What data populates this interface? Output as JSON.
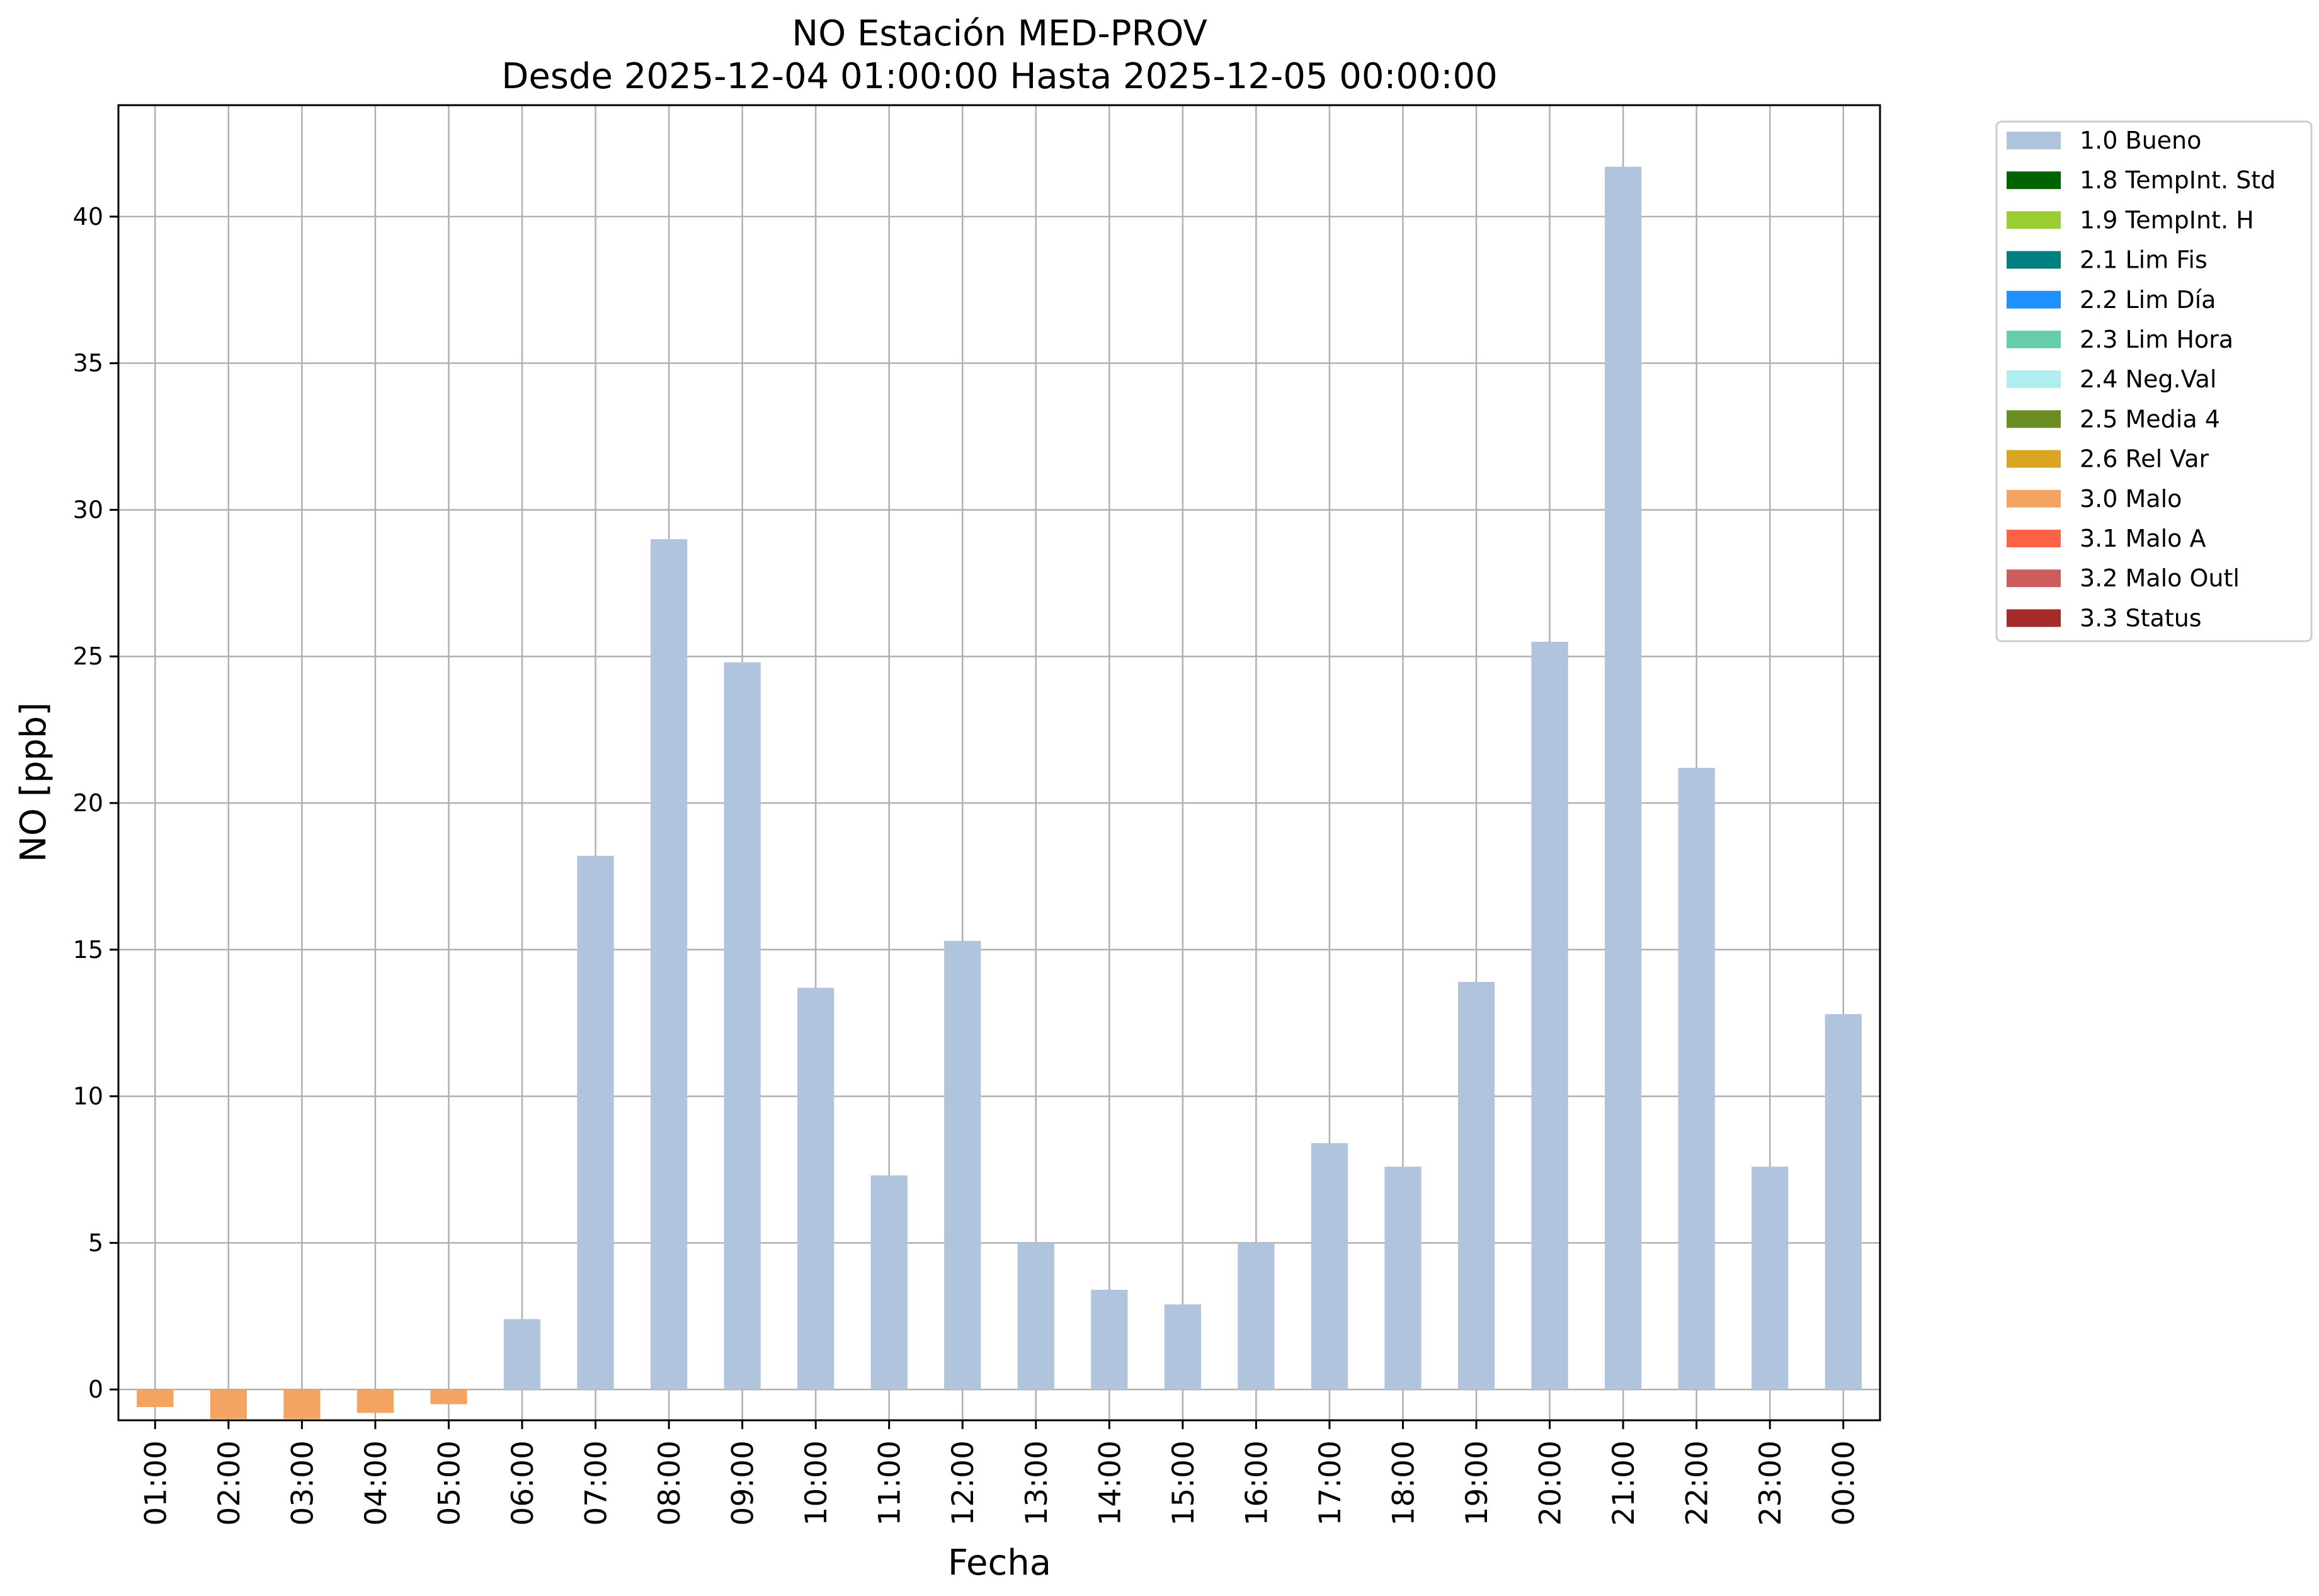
{
  "chart_data": {
    "type": "bar",
    "title": "NO Estación MED-PROV",
    "subtitle": "Desde 2025-12-04 01:00:00 Hasta 2025-12-05 00:00:00",
    "xlabel": "Fecha",
    "ylabel": "NO [ppb]",
    "ylim": [
      -1.05,
      43.8
    ],
    "yticks": [
      0,
      5,
      10,
      15,
      20,
      25,
      30,
      35,
      40
    ],
    "grid": true,
    "legend_position": "outside top-right",
    "categories": [
      "01:00",
      "02:00",
      "03:00",
      "04:00",
      "05:00",
      "06:00",
      "07:00",
      "08:00",
      "09:00",
      "10:00",
      "11:00",
      "12:00",
      "13:00",
      "14:00",
      "15:00",
      "16:00",
      "17:00",
      "18:00",
      "19:00",
      "20:00",
      "21:00",
      "22:00",
      "23:00",
      "00:00"
    ],
    "values": [
      -0.6,
      -1.0,
      -1.0,
      -0.8,
      -0.5,
      2.4,
      18.2,
      29.0,
      24.8,
      13.7,
      7.3,
      15.3,
      5.0,
      3.4,
      2.9,
      5.0,
      8.4,
      7.6,
      13.9,
      25.5,
      41.7,
      21.2,
      7.6,
      12.8
    ],
    "flags": [
      "3.0 Malo",
      "3.0 Malo",
      "3.0 Malo",
      "3.0 Malo",
      "3.0 Malo",
      "1.0 Bueno",
      "1.0 Bueno",
      "1.0 Bueno",
      "1.0 Bueno",
      "1.0 Bueno",
      "1.0 Bueno",
      "1.0 Bueno",
      "1.0 Bueno",
      "1.0 Bueno",
      "1.0 Bueno",
      "1.0 Bueno",
      "1.0 Bueno",
      "1.0 Bueno",
      "1.0 Bueno",
      "1.0 Bueno",
      "1.0 Bueno",
      "1.0 Bueno",
      "1.0 Bueno",
      "1.0 Bueno"
    ],
    "legend": [
      {
        "label": "1.0 Bueno",
        "color": "#b0c4de"
      },
      {
        "label": "1.8 TempInt. Std",
        "color": "#006400"
      },
      {
        "label": "1.9 TempInt. H",
        "color": "#9acd32"
      },
      {
        "label": "2.1 Lim Fis",
        "color": "#008080"
      },
      {
        "label": "2.2 Lim Día",
        "color": "#1e90ff"
      },
      {
        "label": "2.3 Lim Hora",
        "color": "#66cdaa"
      },
      {
        "label": "2.4 Neg.Val",
        "color": "#afeeee"
      },
      {
        "label": "2.5 Media 4",
        "color": "#6b8e23"
      },
      {
        "label": "2.6 Rel Var",
        "color": "#daa520"
      },
      {
        "label": "3.0 Malo",
        "color": "#f4a460"
      },
      {
        "label": "3.1 Malo A",
        "color": "#ff6347"
      },
      {
        "label": "3.2 Malo Outl",
        "color": "#cd5c5c"
      },
      {
        "label": "3.3 Status",
        "color": "#a52a2a"
      }
    ]
  }
}
